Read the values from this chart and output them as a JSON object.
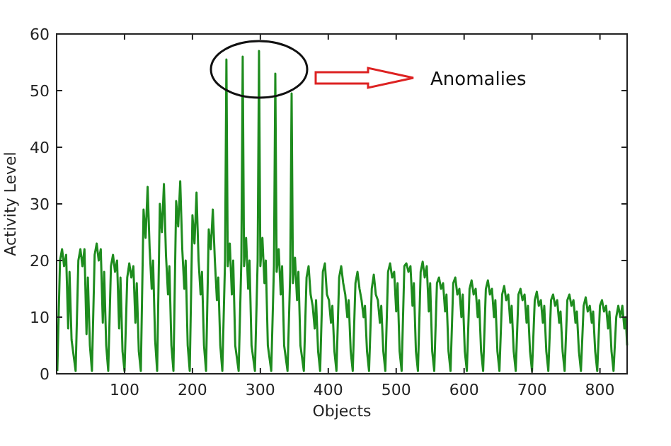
{
  "chart_data": {
    "type": "line",
    "xlabel": "Objects",
    "ylabel": "Activity Level",
    "annotations": [
      "Anomalies"
    ],
    "xlim": [
      0,
      840
    ],
    "ylim": [
      0,
      60
    ],
    "xticks": [
      100,
      200,
      300,
      400,
      500,
      600,
      700,
      800
    ],
    "yticks": [
      0,
      10,
      20,
      30,
      40,
      50,
      60
    ],
    "grid": false,
    "marker": "none",
    "line_style": "solid",
    "series": [
      {
        "color": "#1e8c1e",
        "x": [
          1,
          5,
          8,
          11,
          14,
          17,
          19,
          22,
          28,
          32,
          35,
          38,
          41,
          44,
          46,
          49,
          52,
          56,
          59,
          62,
          65,
          68,
          70,
          73,
          76,
          80,
          83,
          86,
          89,
          92,
          94,
          97,
          100,
          104,
          107,
          110,
          113,
          116,
          118,
          121,
          124,
          128,
          131,
          134,
          137,
          140,
          142,
          145,
          148,
          152,
          155,
          158,
          161,
          164,
          166,
          169,
          172,
          176,
          179,
          182,
          185,
          188,
          190,
          193,
          196,
          200,
          203,
          206,
          209,
          212,
          214,
          217,
          220,
          224,
          227,
          230,
          233,
          236,
          238,
          241,
          244,
          248,
          250,
          252,
          255,
          258,
          260,
          263,
          268,
          272,
          274,
          276,
          279,
          282,
          284,
          287,
          292,
          296,
          298,
          300,
          303,
          306,
          308,
          311,
          316,
          320,
          322,
          324,
          327,
          330,
          332,
          335,
          340,
          344,
          346,
          348,
          351,
          354,
          356,
          359,
          364,
          368,
          371,
          374,
          377,
          380,
          382,
          385,
          388,
          392,
          395,
          398,
          401,
          404,
          406,
          409,
          412,
          416,
          419,
          422,
          425,
          428,
          430,
          433,
          436,
          440,
          443,
          446,
          449,
          452,
          454,
          457,
          460,
          464,
          467,
          470,
          473,
          476,
          478,
          481,
          484,
          488,
          491,
          494,
          497,
          500,
          502,
          505,
          508,
          512,
          515,
          518,
          521,
          524,
          526,
          529,
          532,
          536,
          539,
          542,
          545,
          548,
          550,
          553,
          556,
          560,
          563,
          566,
          569,
          572,
          574,
          577,
          580,
          584,
          587,
          590,
          593,
          596,
          598,
          601,
          604,
          608,
          611,
          614,
          617,
          620,
          622,
          625,
          628,
          632,
          635,
          638,
          641,
          644,
          646,
          649,
          652,
          656,
          659,
          662,
          665,
          668,
          670,
          673,
          676,
          680,
          683,
          686,
          689,
          692,
          694,
          697,
          700,
          704,
          707,
          710,
          713,
          716,
          718,
          721,
          724,
          728,
          731,
          734,
          737,
          740,
          742,
          745,
          748,
          752,
          755,
          758,
          761,
          764,
          766,
          769,
          772,
          776,
          779,
          782,
          785,
          788,
          790,
          793,
          796,
          800,
          803,
          806,
          809,
          812,
          814,
          817,
          820,
          824,
          827,
          830,
          833,
          836,
          838,
          840
        ],
        "values": [
          0.5,
          20,
          22,
          19,
          21,
          8,
          18,
          6,
          0.5,
          20,
          22,
          19,
          22,
          7,
          17,
          5,
          0.5,
          21,
          23,
          20,
          22,
          9,
          18,
          5,
          0.5,
          19,
          21,
          18,
          20,
          8,
          17,
          4,
          0.5,
          17,
          19.5,
          17,
          19,
          9,
          16,
          4,
          0.5,
          29,
          24,
          33,
          22,
          15,
          20,
          6,
          0.5,
          30,
          25,
          33.5,
          21,
          14,
          19,
          5,
          0.5,
          30.5,
          26,
          34,
          22,
          15,
          20,
          5,
          0.5,
          28,
          23,
          32,
          20,
          14,
          18,
          5,
          0.5,
          25.5,
          22,
          29,
          20,
          13,
          17,
          5,
          0.5,
          20,
          55.5,
          19,
          23,
          14,
          20,
          5,
          0.5,
          20,
          56,
          19,
          24,
          15,
          20,
          5,
          0.5,
          20,
          57,
          19,
          24,
          16,
          20,
          5,
          0.5,
          19,
          53,
          18,
          22,
          14,
          19,
          5,
          0.5,
          18,
          49.5,
          16,
          20.5,
          13,
          18,
          5,
          0.5,
          17,
          19,
          14,
          12,
          8,
          13,
          4,
          0.5,
          18,
          19.5,
          14,
          13,
          9,
          12,
          4,
          0.5,
          17,
          19,
          16,
          14,
          10,
          13,
          4,
          0.5,
          16,
          18,
          15,
          13,
          10,
          12,
          4,
          0.5,
          15,
          17.5,
          14,
          13,
          9,
          12,
          4,
          0.5,
          18,
          19.5,
          17,
          18,
          11,
          16,
          4,
          0.5,
          19,
          19.5,
          18,
          19,
          12,
          16,
          4,
          0.5,
          18,
          19.8,
          17,
          19,
          11,
          16,
          4,
          0.5,
          16,
          17,
          15,
          16,
          11,
          14,
          4,
          0.5,
          16,
          17,
          14,
          15,
          10,
          14,
          4,
          0.5,
          15,
          16.5,
          14,
          15,
          10,
          13,
          4,
          0.5,
          15,
          16.5,
          14,
          15,
          10,
          13,
          4,
          0.5,
          14,
          15.5,
          13,
          14,
          9,
          12,
          4,
          0.5,
          14,
          15,
          13,
          14,
          9,
          12,
          4,
          0.5,
          13,
          14.5,
          12,
          13,
          9,
          12,
          4,
          0.5,
          13,
          14,
          12,
          13,
          9,
          11,
          4,
          0.5,
          13,
          14,
          12,
          13,
          9,
          11,
          4,
          0.5,
          12,
          13.5,
          11,
          12,
          9,
          11,
          4,
          0.5,
          12,
          13,
          11,
          12,
          8,
          11,
          4,
          0.5,
          10,
          12,
          10,
          12,
          8,
          10,
          5
        ]
      }
    ]
  }
}
